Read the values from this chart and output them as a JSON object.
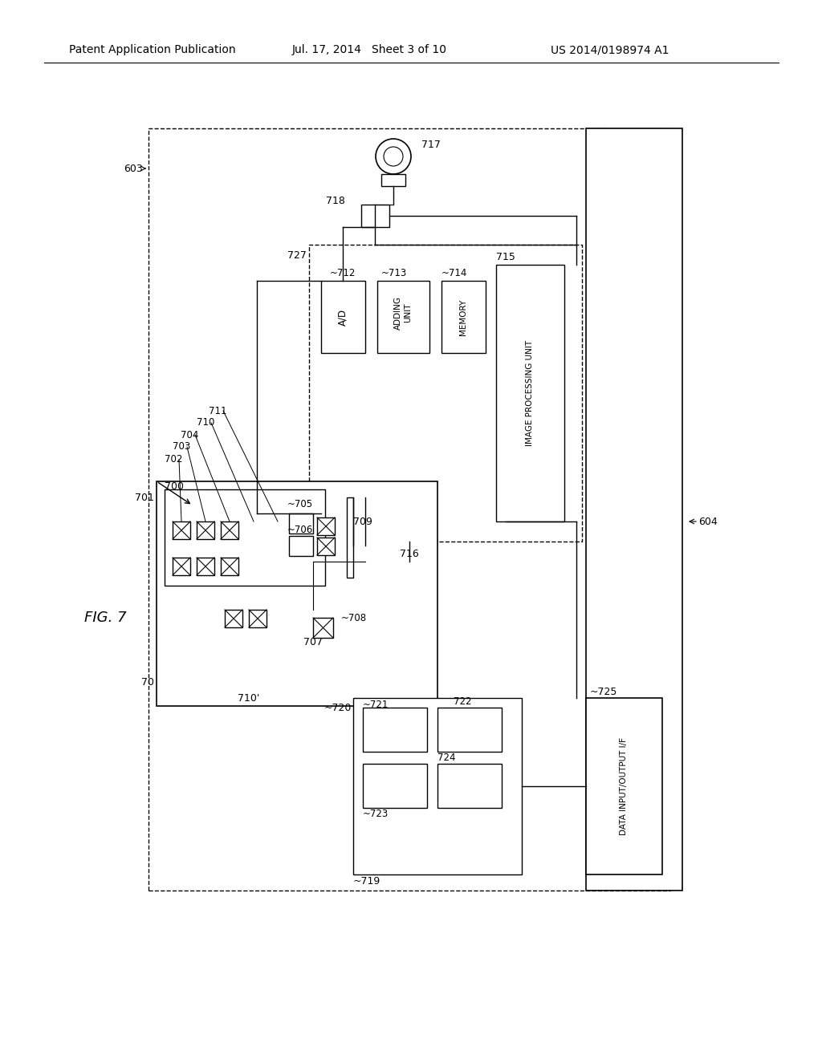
{
  "bg_color": "#ffffff",
  "header_left": "Patent Application Publication",
  "header_mid": "Jul. 17, 2014   Sheet 3 of 10",
  "header_right": "US 2014/0198974 A1",
  "fig_label": "FIG. 7",
  "title_fontsize": 11,
  "label_fontsize": 8.5
}
